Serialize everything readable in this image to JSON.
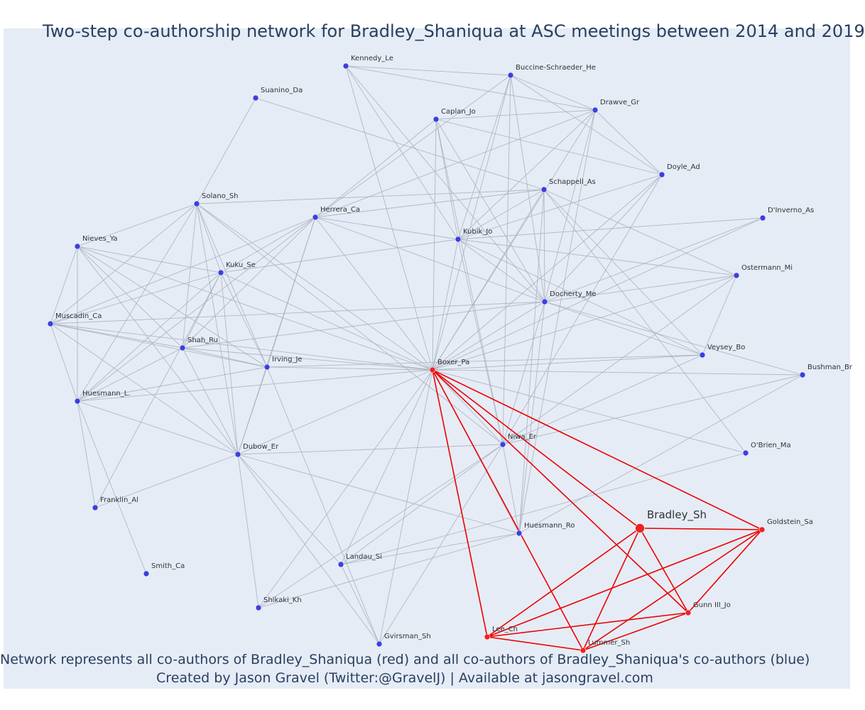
{
  "title": "Two-step co-authorship network for Bradley_Shaniqua at ASC meetings between 2014 and 2019",
  "caption_line1": "Network represents all co-authors of Bradley_Shaniqua (red) and all co-authors of Bradley_Shaniqua's co-authors (blue)",
  "caption_line2": "Created by Jason Gravel (Twitter:@GravelJ) | Available at jasongravel.com",
  "colors": {
    "background": "#e5ecf6",
    "blue_node": "#3b3fe0",
    "red_node": "#ee2222",
    "grey_edge": "#a9aebc",
    "red_edge": "#ee0000",
    "text": "#2a3f5f"
  },
  "nodes": [
    {
      "id": "Bradley_Sh",
      "label": "Bradley_Sh",
      "group": "focal"
    },
    {
      "id": "Boxer_Pa",
      "label": "Boxer_Pa",
      "group": "coauthor"
    },
    {
      "id": "Goldstein_Sa",
      "label": "Goldstein_Sa",
      "group": "coauthor"
    },
    {
      "id": "Gunn III_Jo",
      "label": "Gunn III_Jo",
      "group": "coauthor"
    },
    {
      "id": "Lee_Ch",
      "label": "Lee_Ch",
      "group": "coauthor"
    },
    {
      "id": "Lummer_Sh",
      "label": "Lummer_Sh",
      "group": "coauthor"
    },
    {
      "id": "Kennedy_Le",
      "label": "Kennedy_Le",
      "group": "second"
    },
    {
      "id": "Buccine-Schraeder_He",
      "label": "Buccine-Schraeder_He",
      "group": "second"
    },
    {
      "id": "Suanino_Da",
      "label": "Suanino_Da",
      "group": "second"
    },
    {
      "id": "Caplan_Jo",
      "label": "Caplan_Jo",
      "group": "second"
    },
    {
      "id": "Drawve_Gr",
      "label": "Drawve_Gr",
      "group": "second"
    },
    {
      "id": "Doyle_Ad",
      "label": "Doyle_Ad",
      "group": "second"
    },
    {
      "id": "Schappell_As",
      "label": "Schappell_As",
      "group": "second"
    },
    {
      "id": "Solano_Sh",
      "label": "Solano_Sh",
      "group": "second"
    },
    {
      "id": "Herrera_Ca",
      "label": "Herrera_Ca",
      "group": "second"
    },
    {
      "id": "D'Inverno_As",
      "label": "D'Inverno_As",
      "group": "second"
    },
    {
      "id": "Kubik_Jo",
      "label": "Kubik_Jo",
      "group": "second"
    },
    {
      "id": "Nieves_Ya",
      "label": "Nieves_Ya",
      "group": "second"
    },
    {
      "id": "Kuku_Se",
      "label": "Kuku_Se",
      "group": "second"
    },
    {
      "id": "Ostermann_Mi",
      "label": "Ostermann_Mi",
      "group": "second"
    },
    {
      "id": "Docherty_Me",
      "label": "Docherty_Me",
      "group": "second"
    },
    {
      "id": "Muscadin_Ca",
      "label": "Muscadin_Ca",
      "group": "second"
    },
    {
      "id": "Shah_Ru",
      "label": "Shah_Ru",
      "group": "second"
    },
    {
      "id": "Veysey_Bo",
      "label": "Veysey_Bo",
      "group": "second"
    },
    {
      "id": "Irving_Je",
      "label": "Irving_Je",
      "group": "second"
    },
    {
      "id": "Bushman_Br",
      "label": "Bushman_Br",
      "group": "second"
    },
    {
      "id": "Huesmann_L.",
      "label": "Huesmann_L.",
      "group": "second"
    },
    {
      "id": "Dubow_Er",
      "label": "Dubow_Er",
      "group": "second"
    },
    {
      "id": "Niwa_Er",
      "label": "Niwa_Er",
      "group": "second"
    },
    {
      "id": "O'Brien_Ma",
      "label": "O'Brien_Ma",
      "group": "second"
    },
    {
      "id": "Franklin_Al",
      "label": "Franklin_Al",
      "group": "second"
    },
    {
      "id": "Huesmann_Ro",
      "label": "Huesmann_Ro",
      "group": "second"
    },
    {
      "id": "Smith_Ca",
      "label": "Smith_Ca",
      "group": "second"
    },
    {
      "id": "Landau_Si",
      "label": "Landau_Si",
      "group": "second"
    },
    {
      "id": "Shikaki_Kh",
      "label": "Shikaki_Kh",
      "group": "second"
    },
    {
      "id": "Gvirsman_Sh",
      "label": "Gvirsman_Sh",
      "group": "second"
    }
  ],
  "edges": [
    [
      "Bradley_Sh",
      "Boxer_Pa",
      "red"
    ],
    [
      "Bradley_Sh",
      "Goldstein_Sa",
      "red"
    ],
    [
      "Bradley_Sh",
      "Gunn III_Jo",
      "red"
    ],
    [
      "Bradley_Sh",
      "Lee_Ch",
      "red"
    ],
    [
      "Bradley_Sh",
      "Lummer_Sh",
      "red"
    ],
    [
      "Boxer_Pa",
      "Goldstein_Sa",
      "red"
    ],
    [
      "Boxer_Pa",
      "Gunn III_Jo",
      "red"
    ],
    [
      "Boxer_Pa",
      "Lee_Ch",
      "red"
    ],
    [
      "Boxer_Pa",
      "Lummer_Sh",
      "red"
    ],
    [
      "Goldstein_Sa",
      "Gunn III_Jo",
      "red"
    ],
    [
      "Goldstein_Sa",
      "Lee_Ch",
      "red"
    ],
    [
      "Goldstein_Sa",
      "Lummer_Sh",
      "red"
    ],
    [
      "Gunn III_Jo",
      "Lee_Ch",
      "red"
    ],
    [
      "Gunn III_Jo",
      "Lummer_Sh",
      "red"
    ],
    [
      "Lee_Ch",
      "Lummer_Sh",
      "red"
    ],
    [
      "Boxer_Pa",
      "Kennedy_Le",
      "grey"
    ],
    [
      "Boxer_Pa",
      "Buccine-Schraeder_He",
      "grey"
    ],
    [
      "Boxer_Pa",
      "Caplan_Jo",
      "grey"
    ],
    [
      "Boxer_Pa",
      "Drawve_Gr",
      "grey"
    ],
    [
      "Boxer_Pa",
      "Doyle_Ad",
      "grey"
    ],
    [
      "Boxer_Pa",
      "Schappell_As",
      "grey"
    ],
    [
      "Boxer_Pa",
      "Herrera_Ca",
      "grey"
    ],
    [
      "Boxer_Pa",
      "Kubik_Jo",
      "grey"
    ],
    [
      "Boxer_Pa",
      "Solano_Sh",
      "grey"
    ],
    [
      "Boxer_Pa",
      "Nieves_Ya",
      "grey"
    ],
    [
      "Boxer_Pa",
      "Kuku_Se",
      "grey"
    ],
    [
      "Boxer_Pa",
      "Docherty_Me",
      "grey"
    ],
    [
      "Boxer_Pa",
      "Ostermann_Mi",
      "grey"
    ],
    [
      "Boxer_Pa",
      "D'Inverno_As",
      "grey"
    ],
    [
      "Boxer_Pa",
      "Muscadin_Ca",
      "grey"
    ],
    [
      "Boxer_Pa",
      "Shah_Ru",
      "grey"
    ],
    [
      "Boxer_Pa",
      "Irving_Je",
      "grey"
    ],
    [
      "Boxer_Pa",
      "Veysey_Bo",
      "grey"
    ],
    [
      "Boxer_Pa",
      "Bushman_Br",
      "grey"
    ],
    [
      "Boxer_Pa",
      "Huesmann_L.",
      "grey"
    ],
    [
      "Boxer_Pa",
      "Dubow_Er",
      "grey"
    ],
    [
      "Boxer_Pa",
      "Niwa_Er",
      "grey"
    ],
    [
      "Boxer_Pa",
      "O'Brien_Ma",
      "grey"
    ],
    [
      "Boxer_Pa",
      "Huesmann_Ro",
      "grey"
    ],
    [
      "Boxer_Pa",
      "Landau_Si",
      "grey"
    ],
    [
      "Boxer_Pa",
      "Shikaki_Kh",
      "grey"
    ],
    [
      "Boxer_Pa",
      "Gvirsman_Sh",
      "grey"
    ],
    [
      "Kennedy_Le",
      "Buccine-Schraeder_He",
      "grey"
    ],
    [
      "Kennedy_Le",
      "Drawve_Gr",
      "grey"
    ],
    [
      "Kennedy_Le",
      "Kubik_Jo",
      "grey"
    ],
    [
      "Kennedy_Le",
      "Docherty_Me",
      "grey"
    ],
    [
      "Buccine-Schraeder_He",
      "Drawve_Gr",
      "grey"
    ],
    [
      "Buccine-Schraeder_He",
      "Doyle_Ad",
      "grey"
    ],
    [
      "Buccine-Schraeder_He",
      "Herrera_Ca",
      "grey"
    ],
    [
      "Buccine-Schraeder_He",
      "Kubik_Jo",
      "grey"
    ],
    [
      "Buccine-Schraeder_He",
      "Docherty_Me",
      "grey"
    ],
    [
      "Buccine-Schraeder_He",
      "Niwa_Er",
      "grey"
    ],
    [
      "Caplan_Jo",
      "Drawve_Gr",
      "grey"
    ],
    [
      "Caplan_Jo",
      "Doyle_Ad",
      "grey"
    ],
    [
      "Caplan_Jo",
      "Herrera_Ca",
      "grey"
    ],
    [
      "Caplan_Jo",
      "Kubik_Jo",
      "grey"
    ],
    [
      "Caplan_Jo",
      "Docherty_Me",
      "grey"
    ],
    [
      "Caplan_Jo",
      "Niwa_Er",
      "grey"
    ],
    [
      "Drawve_Gr",
      "Doyle_Ad",
      "grey"
    ],
    [
      "Drawve_Gr",
      "Herrera_Ca",
      "grey"
    ],
    [
      "Drawve_Gr",
      "Kubik_Jo",
      "grey"
    ],
    [
      "Drawve_Gr",
      "Docherty_Me",
      "grey"
    ],
    [
      "Drawve_Gr",
      "Huesmann_Ro",
      "grey"
    ],
    [
      "Doyle_Ad",
      "Kubik_Jo",
      "grey"
    ],
    [
      "Doyle_Ad",
      "Docherty_Me",
      "grey"
    ],
    [
      "Doyle_Ad",
      "Niwa_Er",
      "grey"
    ],
    [
      "Suanino_Da",
      "Schappell_As",
      "grey"
    ],
    [
      "Suanino_Da",
      "Solano_Sh",
      "grey"
    ],
    [
      "Schappell_As",
      "Solano_Sh",
      "grey"
    ],
    [
      "Schappell_As",
      "Herrera_Ca",
      "grey"
    ],
    [
      "Schappell_As",
      "Kubik_Jo",
      "grey"
    ],
    [
      "Schappell_As",
      "Docherty_Me",
      "grey"
    ],
    [
      "Schappell_As",
      "Ostermann_Mi",
      "grey"
    ],
    [
      "Schappell_As",
      "Veysey_Bo",
      "grey"
    ],
    [
      "Schappell_As",
      "O'Brien_Ma",
      "grey"
    ],
    [
      "Schappell_As",
      "Huesmann_Ro",
      "grey"
    ],
    [
      "Herrera_Ca",
      "Kubik_Jo",
      "grey"
    ],
    [
      "Herrera_Ca",
      "Docherty_Me",
      "grey"
    ],
    [
      "Herrera_Ca",
      "Kuku_Se",
      "grey"
    ],
    [
      "Herrera_Ca",
      "Shah_Ru",
      "grey"
    ],
    [
      "Herrera_Ca",
      "Irving_Je",
      "grey"
    ],
    [
      "Herrera_Ca",
      "Dubow_Er",
      "grey"
    ],
    [
      "Herrera_Ca",
      "Huesmann_L.",
      "grey"
    ],
    [
      "Herrera_Ca",
      "Muscadin_Ca",
      "grey"
    ],
    [
      "Kubik_Jo",
      "Docherty_Me",
      "grey"
    ],
    [
      "Kubik_Jo",
      "D'Inverno_As",
      "grey"
    ],
    [
      "Kubik_Jo",
      "Ostermann_Mi",
      "grey"
    ],
    [
      "Kubik_Jo",
      "Veysey_Bo",
      "grey"
    ],
    [
      "Kubik_Jo",
      "Niwa_Er",
      "grey"
    ],
    [
      "Kubik_Jo",
      "Kuku_Se",
      "grey"
    ],
    [
      "Docherty_Me",
      "D'Inverno_As",
      "grey"
    ],
    [
      "Docherty_Me",
      "Ostermann_Mi",
      "grey"
    ],
    [
      "Docherty_Me",
      "Veysey_Bo",
      "grey"
    ],
    [
      "Docherty_Me",
      "Bushman_Br",
      "grey"
    ],
    [
      "Docherty_Me",
      "Niwa_Er",
      "grey"
    ],
    [
      "Docherty_Me",
      "Huesmann_Ro",
      "grey"
    ],
    [
      "Docherty_Me",
      "Shah_Ru",
      "grey"
    ],
    [
      "Docherty_Me",
      "Muscadin_Ca",
      "grey"
    ],
    [
      "Ostermann_Mi",
      "Veysey_Bo",
      "grey"
    ],
    [
      "Ostermann_Mi",
      "Niwa_Er",
      "grey"
    ],
    [
      "Veysey_Bo",
      "Irving_Je",
      "grey"
    ],
    [
      "Veysey_Bo",
      "Niwa_Er",
      "grey"
    ],
    [
      "Bushman_Br",
      "Niwa_Er",
      "grey"
    ],
    [
      "Bushman_Br",
      "Huesmann_Ro",
      "grey"
    ],
    [
      "O'Brien_Ma",
      "Landau_Si",
      "grey"
    ],
    [
      "Solano_Sh",
      "Nieves_Ya",
      "grey"
    ],
    [
      "Solano_Sh",
      "Kuku_Se",
      "grey"
    ],
    [
      "Solano_Sh",
      "Muscadin_Ca",
      "grey"
    ],
    [
      "Solano_Sh",
      "Shah_Ru",
      "grey"
    ],
    [
      "Solano_Sh",
      "Irving_Je",
      "grey"
    ],
    [
      "Solano_Sh",
      "Huesmann_L.",
      "grey"
    ],
    [
      "Solano_Sh",
      "Dubow_Er",
      "grey"
    ],
    [
      "Solano_Sh",
      "Niwa_Er",
      "grey"
    ],
    [
      "Nieves_Ya",
      "Kuku_Se",
      "grey"
    ],
    [
      "Nieves_Ya",
      "Muscadin_Ca",
      "grey"
    ],
    [
      "Nieves_Ya",
      "Shah_Ru",
      "grey"
    ],
    [
      "Nieves_Ya",
      "Irving_Je",
      "grey"
    ],
    [
      "Nieves_Ya",
      "Huesmann_L.",
      "grey"
    ],
    [
      "Nieves_Ya",
      "Dubow_Er",
      "grey"
    ],
    [
      "Kuku_Se",
      "Muscadin_Ca",
      "grey"
    ],
    [
      "Kuku_Se",
      "Shah_Ru",
      "grey"
    ],
    [
      "Kuku_Se",
      "Irving_Je",
      "grey"
    ],
    [
      "Kuku_Se",
      "Huesmann_L.",
      "grey"
    ],
    [
      "Kuku_Se",
      "Dubow_Er",
      "grey"
    ],
    [
      "Kuku_Se",
      "Franklin_Al",
      "grey"
    ],
    [
      "Muscadin_Ca",
      "Shah_Ru",
      "grey"
    ],
    [
      "Muscadin_Ca",
      "Irving_Je",
      "grey"
    ],
    [
      "Muscadin_Ca",
      "Huesmann_L.",
      "grey"
    ],
    [
      "Muscadin_Ca",
      "Dubow_Er",
      "grey"
    ],
    [
      "Shah_Ru",
      "Irving_Je",
      "grey"
    ],
    [
      "Shah_Ru",
      "Huesmann_L.",
      "grey"
    ],
    [
      "Shah_Ru",
      "Dubow_Er",
      "grey"
    ],
    [
      "Irving_Je",
      "Huesmann_L.",
      "grey"
    ],
    [
      "Irving_Je",
      "Dubow_Er",
      "grey"
    ],
    [
      "Irving_Je",
      "Gvirsman_Sh",
      "grey"
    ],
    [
      "Huesmann_L.",
      "Dubow_Er",
      "grey"
    ],
    [
      "Huesmann_L.",
      "Franklin_Al",
      "grey"
    ],
    [
      "Huesmann_L.",
      "Smith_Ca",
      "grey"
    ],
    [
      "Dubow_Er",
      "Niwa_Er",
      "grey"
    ],
    [
      "Dubow_Er",
      "Huesmann_Ro",
      "grey"
    ],
    [
      "Dubow_Er",
      "Franklin_Al",
      "grey"
    ],
    [
      "Dubow_Er",
      "Landau_Si",
      "grey"
    ],
    [
      "Dubow_Er",
      "Shikaki_Kh",
      "grey"
    ],
    [
      "Dubow_Er",
      "Gvirsman_Sh",
      "grey"
    ],
    [
      "Niwa_Er",
      "Huesmann_Ro",
      "grey"
    ],
    [
      "Niwa_Er",
      "Landau_Si",
      "grey"
    ],
    [
      "Niwa_Er",
      "Shikaki_Kh",
      "grey"
    ],
    [
      "Niwa_Er",
      "Gvirsman_Sh",
      "grey"
    ],
    [
      "Huesmann_Ro",
      "Landau_Si",
      "grey"
    ],
    [
      "Huesmann_Ro",
      "Shikaki_Kh",
      "grey"
    ],
    [
      "Landau_Si",
      "Gvirsman_Sh",
      "grey"
    ]
  ]
}
